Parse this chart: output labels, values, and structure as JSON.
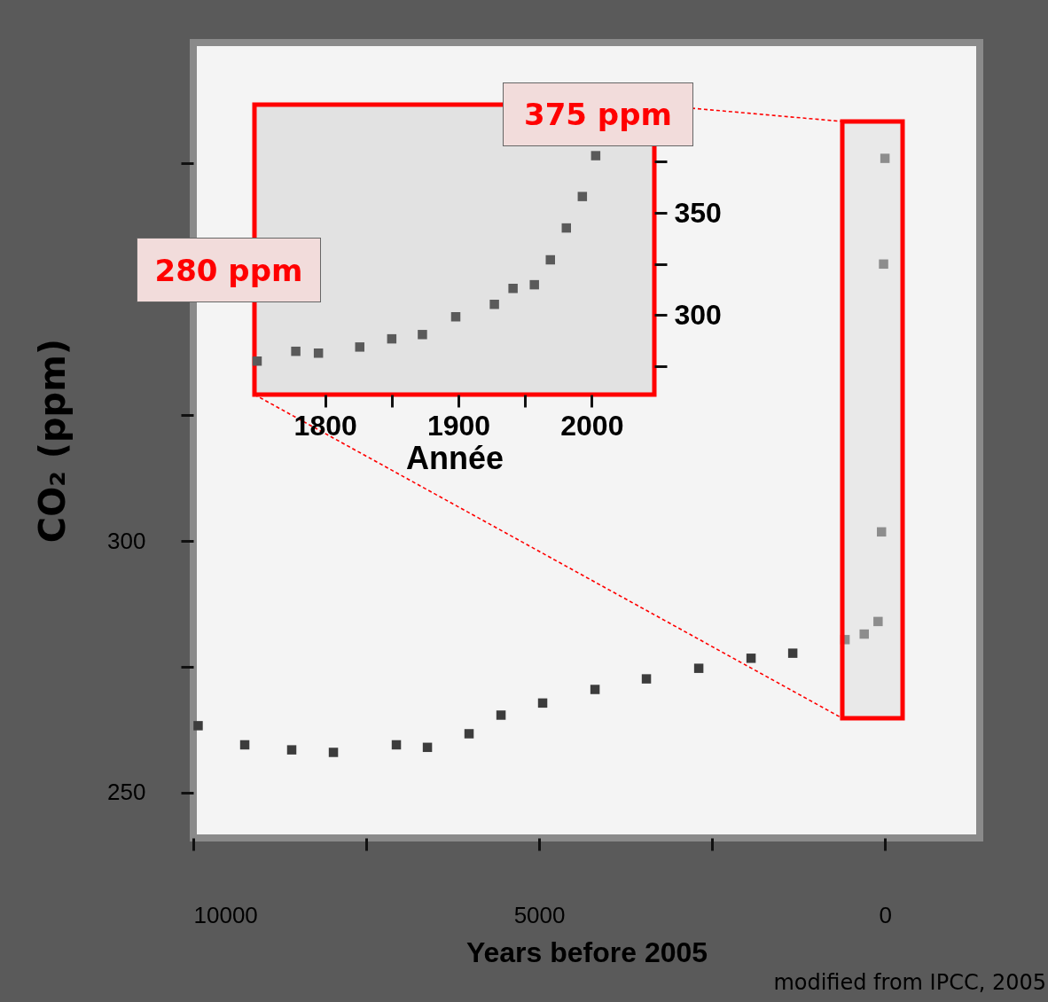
{
  "chart_data": [
    {
      "type": "scatter",
      "xlabel": "Years before 2005",
      "ylabel": "CO₂ (ppm)",
      "marker": "square",
      "grid": false,
      "xlim": [
        10000,
        -1370
      ],
      "xticks": [
        10000,
        {
          "value": 7500,
          "label": null
        },
        5000,
        {
          "value": 2500,
          "label": null
        },
        0
      ],
      "ylim": [
        241,
        399
      ],
      "yticks": [
        250,
        {
          "value": 275,
          "label": null
        },
        300,
        {
          "value": 325,
          "label": null
        },
        {
          "value": 375,
          "label": null
        }
      ],
      "x": [
        9930,
        9256,
        8577,
        7974,
        7064,
        6615,
        6013,
        5551,
        4949,
        4192,
        3449,
        2692,
        1936,
        1333,
        577,
        300,
        100,
        50,
        20,
        0
      ],
      "series": [
        {
          "color": "#3c3c3c",
          "values": [
            263.3,
            259.5,
            258.5,
            258,
            259.5,
            259,
            261.7,
            265.4,
            267.8,
            270.5,
            272.6,
            274.7,
            276.7,
            277.7,
            280.4,
            281.5,
            284,
            301.8,
            355,
            376
          ]
        }
      ],
      "annotations": [
        "modified from IPCC, 2005"
      ]
    },
    {
      "type": "scatter",
      "xlabel": "Année",
      "marker": "square",
      "grid": false,
      "xlim": [
        1747,
        2047
      ],
      "xticks": [
        1800,
        {
          "value": 1850,
          "label": null
        },
        1900,
        {
          "value": 1950,
          "label": null
        },
        2000
      ],
      "ylim": [
        261,
        403
      ],
      "yticks": [
        {
          "value": 275,
          "label": null
        },
        300,
        {
          "value": 325,
          "label": null
        },
        350,
        {
          "value": 375,
          "label": null
        }
      ],
      "x": [
        1749,
        1778,
        1795,
        1826,
        1850,
        1873,
        1898,
        1927,
        1941,
        1957,
        1969,
        1981,
        1993,
        2003
      ],
      "series": [
        {
          "color": "#5a5a5a",
          "values": [
            277.4,
            282.2,
            281.3,
            284.3,
            288.3,
            290.4,
            299.1,
            305.2,
            313,
            314.8,
            327,
            342.6,
            358,
            378
          ]
        }
      ],
      "annotations": [
        "375 ppm",
        "280 ppm"
      ]
    }
  ]
}
